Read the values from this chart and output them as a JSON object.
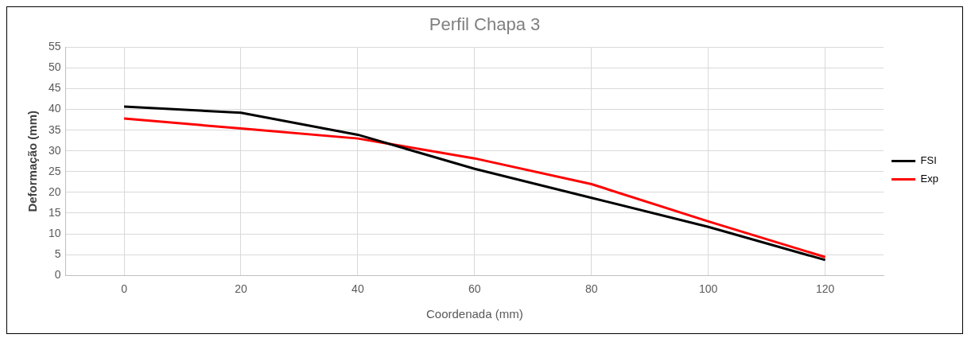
{
  "chart_data": {
    "type": "line",
    "title": "Perfil Chapa 3",
    "xlabel": "Coordenada (mm)",
    "ylabel": "Deformação (mm)",
    "categories": [
      "0",
      "20",
      "40",
      "60",
      "80",
      "100",
      "120"
    ],
    "series": [
      {
        "name": "FSI",
        "color": "#000000",
        "values": [
          40.7,
          39.2,
          33.9,
          25.7,
          18.7,
          11.7,
          3.7
        ]
      },
      {
        "name": "Exp",
        "color": "#ff0000",
        "values": [
          37.8,
          35.4,
          33,
          28.2,
          22,
          13,
          4.4
        ]
      }
    ],
    "ylim": [
      0,
      55
    ],
    "yticks": [
      0,
      5,
      10,
      15,
      20,
      25,
      30,
      35,
      40,
      45,
      50,
      55
    ],
    "grid": true,
    "legend": "right",
    "marker": "none",
    "line_style": "solid"
  }
}
